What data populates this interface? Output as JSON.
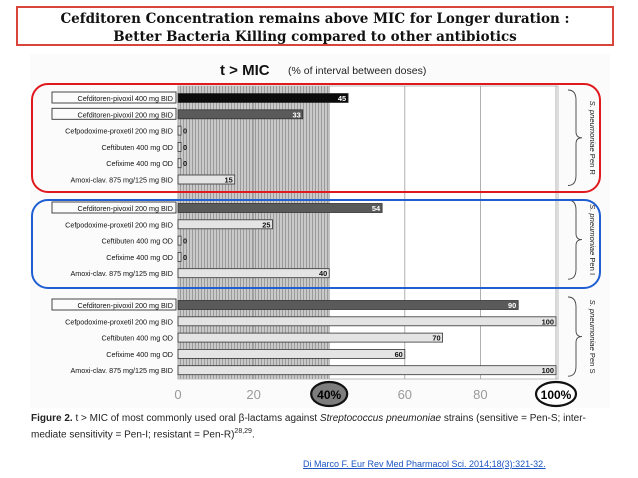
{
  "slide": {
    "title_line1": "Cefditoren Concentration remains  above MIC for Longer duration :",
    "title_line2": "Better Bacteria Killing compared to other antibiotics"
  },
  "colors": {
    "title_border": "#d9453a",
    "group_pen_r_border": "#e0191d",
    "group_pen_i_border": "#1f5fd1",
    "citation": "#1a56c4",
    "bar_400bid": "#0b0b0b",
    "bar_cefditoren200": "#5a5a5a",
    "bar_other": "#e4e4e4"
  },
  "chart_data": {
    "type": "bar",
    "orientation": "horizontal",
    "title_main": "t > MIC",
    "title_sub": "(% of interval between doses)",
    "xlim": [
      0,
      105
    ],
    "xticks": [
      "0",
      "20",
      "40%",
      "60",
      "80",
      "100%"
    ],
    "xtick_values": [
      0,
      20,
      40,
      60,
      80,
      100
    ],
    "highlighted_ticks": [
      "40%",
      "100%"
    ],
    "threshold_shading": [
      0,
      40
    ],
    "grid": true,
    "groups": [
      {
        "label_prefix": "S. pneumoniae",
        "label_suffix": "Pen R",
        "bars": [
          {
            "label": "Cefditoren-pivoxil 400 mg BID",
            "value": 45,
            "style": "black",
            "boxed": true
          },
          {
            "label": "Cefditoren-pivoxil 200 mg BID",
            "value": 33,
            "style": "dark",
            "boxed": true
          },
          {
            "label": "Cefpodoxime-proxetil 200 mg BID",
            "value": 0,
            "style": "light",
            "boxed": false
          },
          {
            "label": "Ceftibuten 400 mg OD",
            "value": 0,
            "style": "light",
            "boxed": false
          },
          {
            "label": "Cefixime 400 mg OD",
            "value": 0,
            "style": "light",
            "boxed": false
          },
          {
            "label": "Amoxi-clav. 875 mg/125 mg BID",
            "value": 15,
            "style": "light",
            "boxed": false
          }
        ]
      },
      {
        "label_prefix": "S. pneumoniae",
        "label_suffix": "Pen I",
        "bars": [
          {
            "label": "Cefditoren-pivoxil 200 mg BID",
            "value": 54,
            "style": "dark",
            "boxed": true
          },
          {
            "label": "Cefpodoxime-proxetil 200 mg BID",
            "value": 25,
            "style": "light",
            "boxed": false
          },
          {
            "label": "Ceftibuten 400 mg OD",
            "value": 0,
            "style": "light",
            "boxed": false
          },
          {
            "label": "Cefixime 400 mg OD",
            "value": 0,
            "style": "light",
            "boxed": false
          },
          {
            "label": "Amoxi-clav. 875 mg/125 mg BID",
            "value": 40,
            "style": "light",
            "boxed": false
          }
        ]
      },
      {
        "label_prefix": "S. pneumoniae",
        "label_suffix": "Pen S",
        "bars": [
          {
            "label": "Cefditoren-pivoxil 200 mg BID",
            "value": 90,
            "style": "dark",
            "boxed": true
          },
          {
            "label": "Cefpodoxime-proxetil 200 mg BID",
            "value": 100,
            "style": "light",
            "boxed": false
          },
          {
            "label": "Ceftibuten 400 mg OD",
            "value": 70,
            "style": "light",
            "boxed": false
          },
          {
            "label": "Cefixime 400 mg OD",
            "value": 60,
            "style": "light",
            "boxed": false
          },
          {
            "label": "Amoxi-clav. 875 mg/125 mg BID",
            "value": 100,
            "style": "light",
            "boxed": false
          }
        ]
      }
    ]
  },
  "caption": {
    "fig_label": "Figure 2.",
    "text_a": " t > MIC of most commonly used oral β-lactams against ",
    "organism": "Streptococcus pneumoniae",
    "text_b": " strains (sensitive = Pen-S; inter-",
    "line2": "mediate sensitivity = Pen-I; resistant = Pen-R)",
    "refs": "28,29"
  },
  "citation": {
    "text": "Di Marco F. Eur Rev Med Pharmacol Sci. 2014;18(3):321-32."
  }
}
